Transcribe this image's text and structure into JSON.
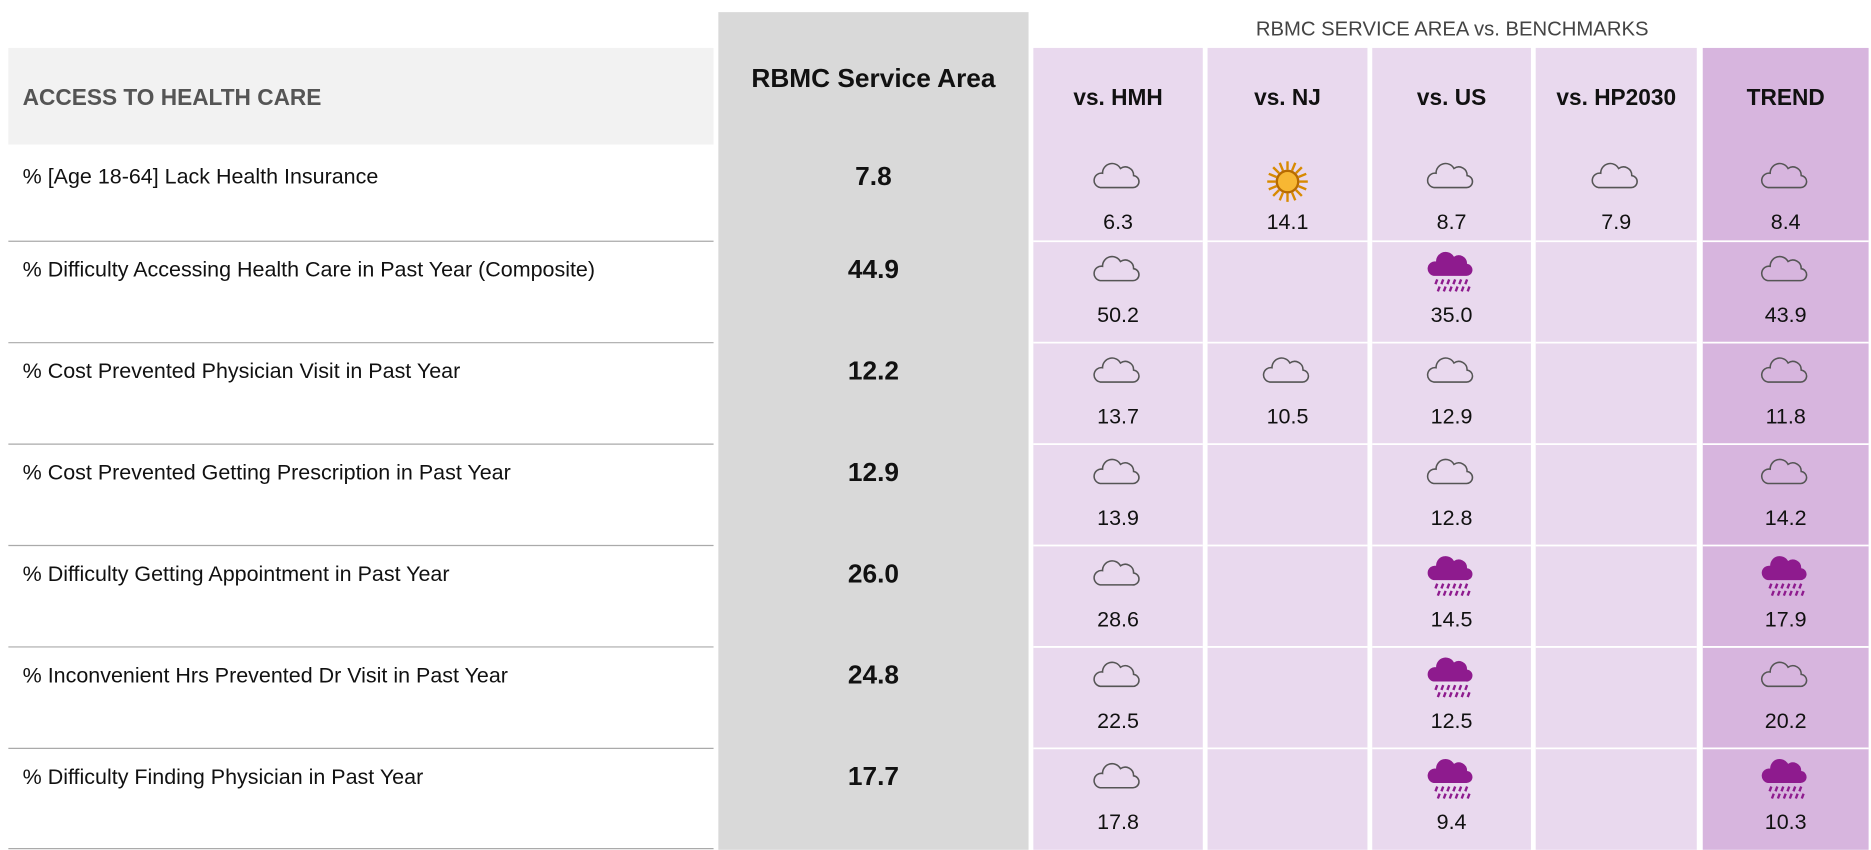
{
  "header": {
    "section": "ACCESS TO HEALTH CARE",
    "area": "RBMC Service Area",
    "group": "RBMC SERVICE AREA vs. BENCHMARKS",
    "columns": [
      "vs. HMH",
      "vs. NJ",
      "vs. US",
      "vs. HP2030",
      "TREND"
    ]
  },
  "table": {
    "rows": [
      {
        "label": "% [Age 18-64] Lack Health Insurance",
        "value": "7.8",
        "cells": [
          {
            "icon": "cloud",
            "value": "6.3"
          },
          {
            "icon": "sun",
            "value": "14.1"
          },
          {
            "icon": "cloud",
            "value": "8.7"
          },
          {
            "icon": "cloud",
            "value": "7.9"
          },
          {
            "icon": "cloud",
            "value": "8.4"
          }
        ]
      },
      {
        "label": "% Difficulty Accessing Health Care in Past Year (Composite)",
        "value": "44.9",
        "cells": [
          {
            "icon": "cloud",
            "value": "50.2"
          },
          null,
          {
            "icon": "rain",
            "value": "35.0"
          },
          null,
          {
            "icon": "cloud",
            "value": "43.9"
          }
        ]
      },
      {
        "label": "% Cost Prevented Physician Visit in Past Year",
        "value": "12.2",
        "cells": [
          {
            "icon": "cloud",
            "value": "13.7"
          },
          {
            "icon": "cloud",
            "value": "10.5"
          },
          {
            "icon": "cloud",
            "value": "12.9"
          },
          null,
          {
            "icon": "cloud",
            "value": "11.8"
          }
        ]
      },
      {
        "label": "% Cost Prevented Getting Prescription in Past Year",
        "value": "12.9",
        "cells": [
          {
            "icon": "cloud",
            "value": "13.9"
          },
          null,
          {
            "icon": "cloud",
            "value": "12.8"
          },
          null,
          {
            "icon": "cloud",
            "value": "14.2"
          }
        ]
      },
      {
        "label": "% Difficulty Getting Appointment in Past Year",
        "value": "26.0",
        "cells": [
          {
            "icon": "cloud",
            "value": "28.6"
          },
          null,
          {
            "icon": "rain",
            "value": "14.5"
          },
          null,
          {
            "icon": "rain",
            "value": "17.9"
          }
        ]
      },
      {
        "label": "% Inconvenient Hrs Prevented Dr Visit in Past Year",
        "value": "24.8",
        "cells": [
          {
            "icon": "cloud",
            "value": "22.5"
          },
          null,
          {
            "icon": "rain",
            "value": "12.5"
          },
          null,
          {
            "icon": "cloud",
            "value": "20.2"
          }
        ]
      },
      {
        "label": "% Difficulty Finding Physician in Past Year",
        "value": "17.7",
        "cells": [
          {
            "icon": "cloud",
            "value": "17.8"
          },
          null,
          {
            "icon": "rain",
            "value": "9.4"
          },
          null,
          {
            "icon": "rain",
            "value": "10.3"
          }
        ]
      }
    ]
  }
}
